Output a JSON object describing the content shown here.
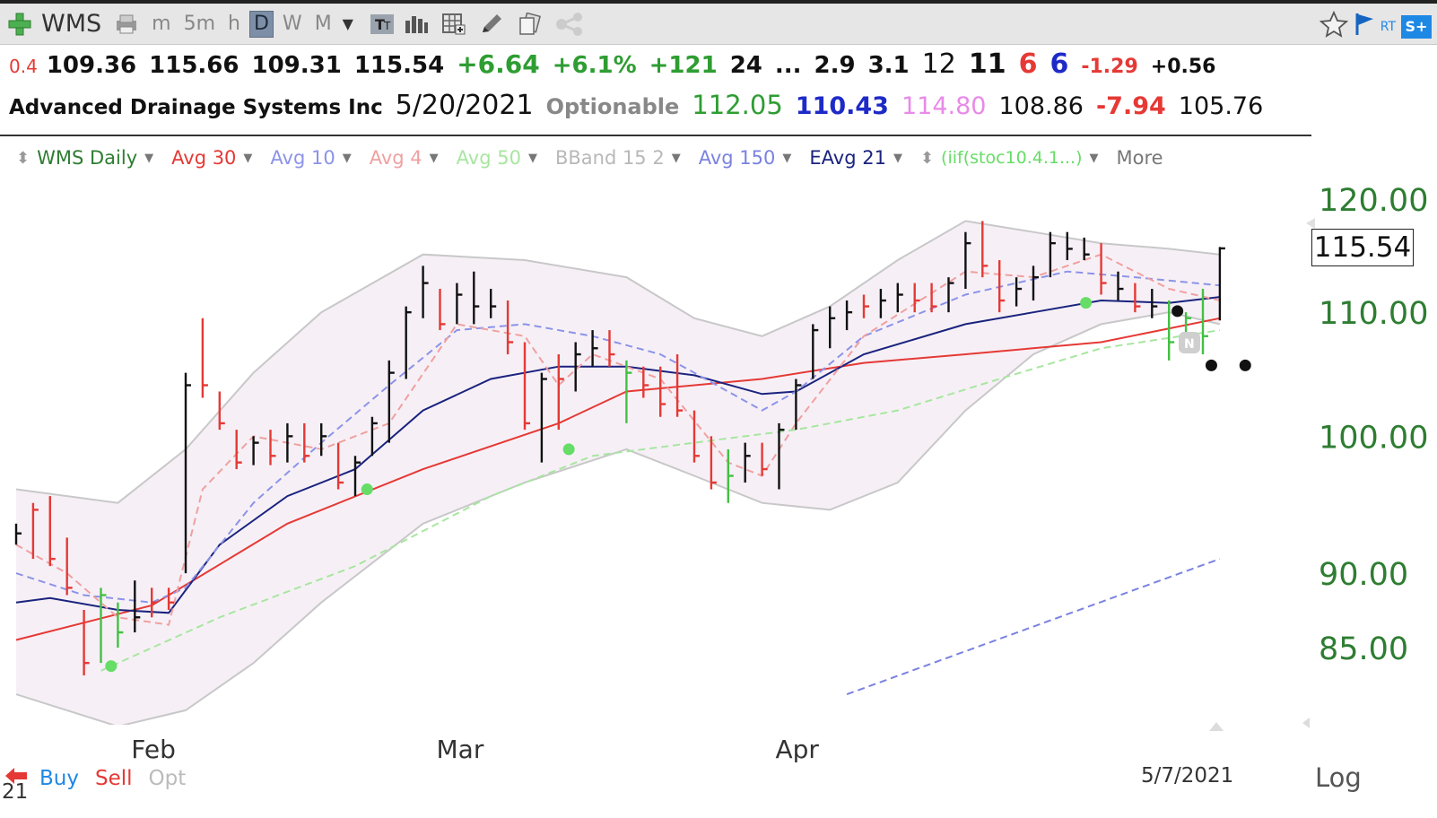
{
  "toolbar": {
    "symbol": "WMS",
    "periods": [
      "m",
      "5m",
      "h",
      "D",
      "W",
      "M"
    ],
    "selected_period": "D"
  },
  "quote": {
    "q1": "0.4",
    "open": "109.36",
    "high": "115.66",
    "low": "109.31",
    "close": "115.54",
    "change": "+6.64",
    "change_pct": "+6.1%",
    "v1": "+121",
    "v2": "24",
    "ellipsis": "...",
    "v3": "2.9",
    "v4": "3.1",
    "v5": "12",
    "v6": "11",
    "v7": "6",
    "v8": "6",
    "v9": "-1.29",
    "v10": "+0.56"
  },
  "info": {
    "company": "Advanced Drainage Systems Inc",
    "date": "5/20/2021",
    "optionable": "Optionable",
    "p1": "112.05",
    "p2": "110.43",
    "p3": "114.80",
    "p4": "108.86",
    "p5": "-7.94",
    "p6": "105.76"
  },
  "legend": {
    "items": [
      {
        "label": "WMS Daily",
        "color": "#2e7d32"
      },
      {
        "label": "Avg 30",
        "color": "#e53935"
      },
      {
        "label": "Avg 10",
        "color": "#8c93e8"
      },
      {
        "label": "Avg 4",
        "color": "#f0a0a0"
      },
      {
        "label": "Avg 50",
        "color": "#a8e6a0"
      },
      {
        "label": "BBand 15 2",
        "color": "#b8b8b8"
      },
      {
        "label": "Avg 150",
        "color": "#7a82e0"
      },
      {
        "label": "EAvg 21",
        "color": "#1a237e"
      },
      {
        "label": "(iif(stoc10.4.1...)",
        "color": "#66dd66"
      }
    ],
    "more": "More"
  },
  "price_box": "115.54",
  "colors": {
    "up_bar": "#111111",
    "down_bar": "#e53935",
    "green_bar": "#43c043",
    "bband_fill": "#f6f0f6"
  },
  "chart_data": {
    "type": "bar",
    "title": "WMS Daily",
    "yscale": "log",
    "ylim": [
      83.5,
      121
    ],
    "yticks": [
      "120.00",
      "110.00",
      "100.00",
      "90.00",
      "85.00"
    ],
    "xlabels": [
      {
        "label": "Feb",
        "x": 7
      },
      {
        "label": "Mar",
        "x": 25
      },
      {
        "label": "Apr",
        "x": 45
      }
    ],
    "bars": [
      {
        "x": 0,
        "h": 93.5,
        "l": 92.0,
        "c": 92.8,
        "col": "k"
      },
      {
        "x": 1,
        "h": 95.0,
        "l": 91.0,
        "c": 94.5,
        "col": "r"
      },
      {
        "x": 2,
        "h": 95.5,
        "l": 90.5,
        "c": 91.0,
        "col": "r"
      },
      {
        "x": 3,
        "h": 92.5,
        "l": 88.5,
        "c": 89.0,
        "col": "r"
      },
      {
        "x": 4,
        "h": 87.5,
        "l": 83.2,
        "c": 84.0,
        "col": "r"
      },
      {
        "x": 5,
        "h": 89.0,
        "l": 84.0,
        "c": 88.5,
        "col": "g"
      },
      {
        "x": 6,
        "h": 88.0,
        "l": 85.0,
        "c": 86.0,
        "col": "g"
      },
      {
        "x": 7,
        "h": 89.5,
        "l": 86.0,
        "c": 87.0,
        "col": "k"
      },
      {
        "x": 8,
        "h": 89.0,
        "l": 87.0,
        "c": 88.0,
        "col": "r"
      },
      {
        "x": 9,
        "h": 89.0,
        "l": 87.5,
        "c": 88.0,
        "col": "r"
      },
      {
        "x": 10,
        "h": 105.0,
        "l": 90.0,
        "c": 104.0,
        "col": "k"
      },
      {
        "x": 11,
        "h": 109.5,
        "l": 103.0,
        "c": 104.0,
        "col": "r"
      },
      {
        "x": 12,
        "h": 103.5,
        "l": 100.5,
        "c": 101.0,
        "col": "r"
      },
      {
        "x": 13,
        "h": 100.5,
        "l": 97.5,
        "c": 98.0,
        "col": "r"
      },
      {
        "x": 14,
        "h": 100.0,
        "l": 97.8,
        "c": 99.5,
        "col": "k"
      },
      {
        "x": 15,
        "h": 100.5,
        "l": 97.8,
        "c": 98.5,
        "col": "r"
      },
      {
        "x": 16,
        "h": 101.0,
        "l": 98.0,
        "c": 100.0,
        "col": "k"
      },
      {
        "x": 17,
        "h": 101.0,
        "l": 98.0,
        "c": 98.5,
        "col": "r"
      },
      {
        "x": 18,
        "h": 101.0,
        "l": 98.5,
        "c": 100.0,
        "col": "k"
      },
      {
        "x": 19,
        "h": 99.5,
        "l": 96.0,
        "c": 96.5,
        "col": "r"
      },
      {
        "x": 20,
        "h": 98.5,
        "l": 95.5,
        "c": 98.0,
        "col": "k"
      },
      {
        "x": 21,
        "h": 101.5,
        "l": 98.5,
        "c": 101.0,
        "col": "k"
      },
      {
        "x": 22,
        "h": 106.0,
        "l": 99.5,
        "c": 105.0,
        "col": "k"
      },
      {
        "x": 23,
        "h": 110.5,
        "l": 104.5,
        "c": 110.0,
        "col": "k"
      },
      {
        "x": 24,
        "h": 114.0,
        "l": 109.5,
        "c": 112.5,
        "col": "k"
      },
      {
        "x": 25,
        "h": 112.0,
        "l": 108.5,
        "c": 109.0,
        "col": "r"
      },
      {
        "x": 26,
        "h": 112.5,
        "l": 109.0,
        "c": 111.5,
        "col": "k"
      },
      {
        "x": 27,
        "h": 113.5,
        "l": 109.0,
        "c": 110.5,
        "col": "k"
      },
      {
        "x": 28,
        "h": 112.0,
        "l": 109.5,
        "c": 110.5,
        "col": "k"
      },
      {
        "x": 29,
        "h": 111.0,
        "l": 106.5,
        "c": 107.5,
        "col": "r"
      },
      {
        "x": 30,
        "h": 107.5,
        "l": 100.5,
        "c": 101.0,
        "col": "r"
      },
      {
        "x": 31,
        "h": 105.0,
        "l": 98.0,
        "c": 104.5,
        "col": "k"
      },
      {
        "x": 32,
        "h": 106.5,
        "l": 100.5,
        "c": 104.5,
        "col": "r"
      },
      {
        "x": 33,
        "h": 107.5,
        "l": 103.5,
        "c": 106.5,
        "col": "k"
      },
      {
        "x": 34,
        "h": 108.5,
        "l": 105.5,
        "c": 107.0,
        "col": "k"
      },
      {
        "x": 35,
        "h": 108.5,
        "l": 105.5,
        "c": 106.5,
        "col": "r"
      },
      {
        "x": 36,
        "h": 106.0,
        "l": 101.0,
        "c": 105.0,
        "col": "g"
      },
      {
        "x": 37,
        "h": 105.5,
        "l": 103.0,
        "c": 104.0,
        "col": "r"
      },
      {
        "x": 38,
        "h": 105.5,
        "l": 101.5,
        "c": 102.5,
        "col": "r"
      },
      {
        "x": 39,
        "h": 106.5,
        "l": 101.5,
        "c": 102.0,
        "col": "r"
      },
      {
        "x": 40,
        "h": 102.0,
        "l": 98.0,
        "c": 98.5,
        "col": "r"
      },
      {
        "x": 41,
        "h": 100.0,
        "l": 96.0,
        "c": 96.5,
        "col": "r"
      },
      {
        "x": 42,
        "h": 99.0,
        "l": 95.0,
        "c": 97.0,
        "col": "g"
      },
      {
        "x": 43,
        "h": 99.5,
        "l": 96.5,
        "c": 98.5,
        "col": "k"
      },
      {
        "x": 44,
        "h": 99.5,
        "l": 97.0,
        "c": 97.5,
        "col": "r"
      },
      {
        "x": 45,
        "h": 101.0,
        "l": 96.0,
        "c": 100.5,
        "col": "k"
      },
      {
        "x": 46,
        "h": 104.5,
        "l": 100.5,
        "c": 104.0,
        "col": "k"
      },
      {
        "x": 47,
        "h": 109.0,
        "l": 104.5,
        "c": 108.5,
        "col": "k"
      },
      {
        "x": 48,
        "h": 110.5,
        "l": 107.0,
        "c": 109.5,
        "col": "k"
      },
      {
        "x": 49,
        "h": 111.0,
        "l": 108.5,
        "c": 110.0,
        "col": "k"
      },
      {
        "x": 50,
        "h": 111.5,
        "l": 109.5,
        "c": 110.5,
        "col": "r"
      },
      {
        "x": 51,
        "h": 112.0,
        "l": 109.5,
        "c": 111.0,
        "col": "k"
      },
      {
        "x": 52,
        "h": 112.5,
        "l": 110.0,
        "c": 111.5,
        "col": "k"
      },
      {
        "x": 53,
        "h": 112.5,
        "l": 110.0,
        "c": 111.0,
        "col": "r"
      },
      {
        "x": 54,
        "h": 112.5,
        "l": 110.0,
        "c": 110.5,
        "col": "r"
      },
      {
        "x": 55,
        "h": 113.0,
        "l": 110.0,
        "c": 112.5,
        "col": "k"
      },
      {
        "x": 56,
        "h": 117.0,
        "l": 112.0,
        "c": 116.0,
        "col": "k"
      },
      {
        "x": 57,
        "h": 118.0,
        "l": 113.0,
        "c": 114.0,
        "col": "r"
      },
      {
        "x": 58,
        "h": 114.5,
        "l": 110.0,
        "c": 111.0,
        "col": "r"
      },
      {
        "x": 59,
        "h": 113.0,
        "l": 110.5,
        "c": 112.0,
        "col": "k"
      },
      {
        "x": 60,
        "h": 114.0,
        "l": 111.0,
        "c": 113.0,
        "col": "k"
      },
      {
        "x": 61,
        "h": 117.0,
        "l": 113.0,
        "c": 116.0,
        "col": "k"
      },
      {
        "x": 62,
        "h": 117.0,
        "l": 114.5,
        "c": 115.5,
        "col": "k"
      },
      {
        "x": 63,
        "h": 116.5,
        "l": 114.5,
        "c": 115.0,
        "col": "k"
      },
      {
        "x": 64,
        "h": 116.0,
        "l": 111.5,
        "c": 112.5,
        "col": "r"
      },
      {
        "x": 65,
        "h": 113.5,
        "l": 111.0,
        "c": 112.0,
        "col": "k"
      },
      {
        "x": 66,
        "h": 112.5,
        "l": 110.0,
        "c": 110.5,
        "col": "r"
      },
      {
        "x": 67,
        "h": 112.0,
        "l": 109.5,
        "c": 110.5,
        "col": "k"
      },
      {
        "x": 68,
        "h": 111.0,
        "l": 106.0,
        "c": 107.5,
        "col": "g"
      },
      {
        "x": 69,
        "h": 110.0,
        "l": 107.0,
        "c": 109.5,
        "col": "g"
      },
      {
        "x": 70,
        "h": 112.0,
        "l": 106.5,
        "c": 108.0,
        "col": "g"
      },
      {
        "x": 71,
        "h": 115.66,
        "l": 109.31,
        "c": 115.54,
        "col": "k"
      }
    ],
    "series": [
      {
        "name": "Avg 30",
        "color": "#e53935",
        "dash": false,
        "width": 2,
        "values": [
          [
            0,
            85.5
          ],
          [
            8,
            87.8
          ],
          [
            16,
            93.5
          ],
          [
            24,
            97.5
          ],
          [
            32,
            101.0
          ],
          [
            36,
            103.5
          ],
          [
            44,
            104.5
          ],
          [
            50,
            105.8
          ],
          [
            56,
            106.5
          ],
          [
            64,
            107.5
          ],
          [
            71,
            109.5
          ]
        ]
      },
      {
        "name": "EAvg 21",
        "color": "#1a237e",
        "dash": false,
        "width": 2,
        "values": [
          [
            0,
            88.0
          ],
          [
            2,
            88.3
          ],
          [
            6,
            87.5
          ],
          [
            9,
            87.3
          ],
          [
            12,
            92.0
          ],
          [
            16,
            95.5
          ],
          [
            20,
            97.5
          ],
          [
            24,
            102.0
          ],
          [
            28,
            104.5
          ],
          [
            32,
            105.5
          ],
          [
            36,
            105.5
          ],
          [
            40,
            104.8
          ],
          [
            44,
            103.3
          ],
          [
            46,
            103.5
          ],
          [
            50,
            106.5
          ],
          [
            56,
            109.0
          ],
          [
            60,
            110.0
          ],
          [
            64,
            111.0
          ],
          [
            68,
            110.8
          ],
          [
            71,
            111.3
          ]
        ]
      },
      {
        "name": "Avg 10",
        "color": "#8c93e8",
        "dash": true,
        "width": 2,
        "values": [
          [
            0,
            90.0
          ],
          [
            4,
            88.5
          ],
          [
            8,
            88.0
          ],
          [
            10,
            89.0
          ],
          [
            14,
            95.0
          ],
          [
            18,
            99.5
          ],
          [
            22,
            104.0
          ],
          [
            26,
            108.5
          ],
          [
            30,
            109.0
          ],
          [
            34,
            108.0
          ],
          [
            38,
            106.5
          ],
          [
            40,
            105.0
          ],
          [
            44,
            102.0
          ],
          [
            46,
            103.5
          ],
          [
            50,
            108.0
          ],
          [
            56,
            111.5
          ],
          [
            62,
            113.5
          ],
          [
            66,
            113.0
          ],
          [
            71,
            112.3
          ]
        ]
      },
      {
        "name": "Avg 4",
        "color": "#f0a0a0",
        "dash": true,
        "width": 2,
        "values": [
          [
            0,
            92.0
          ],
          [
            3,
            90.0
          ],
          [
            6,
            87.0
          ],
          [
            9,
            86.5
          ],
          [
            11,
            96.0
          ],
          [
            14,
            100.0
          ],
          [
            18,
            99.0
          ],
          [
            22,
            101.0
          ],
          [
            26,
            109.0
          ],
          [
            30,
            108.0
          ],
          [
            32,
            104.0
          ],
          [
            34,
            106.5
          ],
          [
            38,
            104.5
          ],
          [
            42,
            98.0
          ],
          [
            44,
            97.0
          ],
          [
            46,
            101.0
          ],
          [
            50,
            108.0
          ],
          [
            56,
            113.5
          ],
          [
            60,
            113.0
          ],
          [
            64,
            115.0
          ],
          [
            68,
            112.0
          ],
          [
            71,
            111.0
          ]
        ]
      },
      {
        "name": "Avg 50",
        "color": "#a8e6a0",
        "dash": true,
        "width": 2,
        "values": [
          [
            5,
            83.5
          ],
          [
            12,
            87.0
          ],
          [
            20,
            90.5
          ],
          [
            28,
            95.5
          ],
          [
            34,
            98.5
          ],
          [
            40,
            99.5
          ],
          [
            46,
            100.5
          ],
          [
            52,
            102.0
          ],
          [
            58,
            104.5
          ],
          [
            64,
            107.0
          ],
          [
            71,
            108.5
          ]
        ]
      },
      {
        "name": "Avg 150",
        "color": "#7a82e0",
        "dash": true,
        "width": 2,
        "values": [
          [
            49,
            82.0
          ],
          [
            71,
            91.0
          ]
        ]
      }
    ],
    "bband_upper": [
      [
        0,
        96.0
      ],
      [
        6,
        95.0
      ],
      [
        10,
        99.0
      ],
      [
        14,
        105.0
      ],
      [
        18,
        110.0
      ],
      [
        24,
        115.0
      ],
      [
        30,
        114.5
      ],
      [
        36,
        113.0
      ],
      [
        40,
        109.5
      ],
      [
        44,
        108.0
      ],
      [
        48,
        110.5
      ],
      [
        52,
        114.5
      ],
      [
        56,
        118.0
      ],
      [
        60,
        117.0
      ],
      [
        64,
        116.0
      ],
      [
        68,
        115.5
      ],
      [
        71,
        115.0
      ]
    ],
    "bband_lower": [
      [
        0,
        82.0
      ],
      [
        6,
        80.0
      ],
      [
        10,
        81.0
      ],
      [
        14,
        84.0
      ],
      [
        18,
        88.0
      ],
      [
        24,
        93.5
      ],
      [
        30,
        96.5
      ],
      [
        36,
        99.0
      ],
      [
        40,
        97.0
      ],
      [
        44,
        95.0
      ],
      [
        48,
        94.5
      ],
      [
        52,
        96.5
      ],
      [
        56,
        102.0
      ],
      [
        60,
        106.5
      ],
      [
        64,
        109.0
      ],
      [
        68,
        110.0
      ],
      [
        71,
        109.0
      ]
    ],
    "dots": [
      {
        "x": 5.6,
        "y": 83.8,
        "color": "#66dd66"
      },
      {
        "x": 20.7,
        "y": 96.0,
        "color": "#66dd66"
      },
      {
        "x": 32.6,
        "y": 99.0,
        "color": "#66dd66"
      },
      {
        "x": 63.1,
        "y": 110.8,
        "color": "#66dd66"
      },
      {
        "x": 68.5,
        "y": 110.1,
        "color": "#111111"
      },
      {
        "x": 70.5,
        "y": 105.6,
        "color": "#111111"
      },
      {
        "x": 72.5,
        "y": 105.6,
        "color": "#111111"
      }
    ]
  },
  "bottom": {
    "buy": "Buy",
    "sell": "Sell",
    "opt": "Opt",
    "date": "5/7/2021",
    "log": "Log",
    "year": "21"
  }
}
